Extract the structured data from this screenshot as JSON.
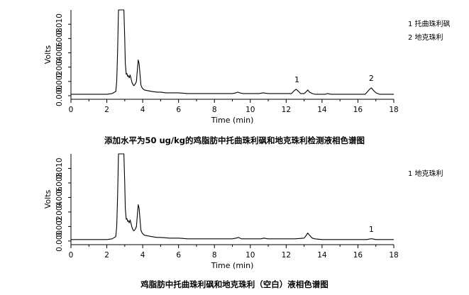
{
  "chart_data": [
    {
      "type": "line",
      "title": "添加水平为50 ug/kg的鸡脂肪中托曲珠利砜和地克珠利检测液相色谱图",
      "xlabel": "Time (min)",
      "ylabel": "Volts",
      "xlim": [
        0,
        18
      ],
      "ylim": [
        -0.0005,
        0.012
      ],
      "x_ticks": [
        "0",
        "2",
        "4",
        "6",
        "8",
        "10",
        "12",
        "14",
        "16",
        "18"
      ],
      "y_ticks_text": [
        "0.000",
        "0.002",
        "0.004",
        "0.006",
        "0.008",
        "0.010"
      ],
      "grid": false,
      "legend_position": "top-right",
      "legend": [
        "1  托曲珠利砜",
        "2  地克珠利"
      ],
      "peak_labels": [
        {
          "label": "1",
          "x": 12.6
        },
        {
          "label": "2",
          "x": 16.75
        }
      ],
      "series": [
        {
          "x": [
            0,
            0.3,
            0.5,
            0.8,
            1.2,
            1.6,
            2.0,
            2.3,
            2.5,
            2.55,
            2.6,
            2.65,
            2.7,
            2.75,
            2.82,
            2.9,
            2.95,
            3.0,
            3.03,
            3.08,
            3.12,
            3.16,
            3.2,
            3.25,
            3.3,
            3.35,
            3.4,
            3.45,
            3.5,
            3.55,
            3.6,
            3.65,
            3.7,
            3.75,
            3.8,
            3.85,
            3.9,
            3.95,
            4.0,
            4.1,
            4.3,
            4.5,
            4.8,
            5.0,
            5.3,
            5.6,
            6.0,
            6.5,
            7.0,
            7.5,
            8.0,
            8.5,
            9.0,
            9.2,
            9.3,
            9.4,
            9.6,
            10.0,
            10.5,
            10.7,
            11.0,
            11.5,
            12.0,
            12.3,
            12.45,
            12.55,
            12.65,
            12.8,
            13.0,
            13.1,
            13.2,
            13.3,
            13.45,
            13.6,
            13.8,
            14.0,
            14.2,
            14.3,
            14.5,
            15.0,
            15.5,
            16.0,
            16.4,
            16.55,
            16.65,
            16.75,
            16.85,
            17.0,
            17.2,
            17.5,
            18.0
          ],
          "y": [
            0.0002,
            0.0002,
            0.0002,
            0.0002,
            0.0002,
            0.0002,
            0.0002,
            0.0003,
            0.0006,
            0.002,
            0.006,
            0.012,
            0.012,
            0.0121,
            0.0121,
            0.0121,
            0.012,
            0.008,
            0.0045,
            0.003,
            0.0031,
            0.0027,
            0.0028,
            0.0025,
            0.0029,
            0.0024,
            0.0019,
            0.0016,
            0.0014,
            0.0015,
            0.0017,
            0.002,
            0.0035,
            0.005,
            0.0045,
            0.003,
            0.0015,
            0.0012,
            0.001,
            0.0008,
            0.0007,
            0.0006,
            0.0005,
            0.0005,
            0.0004,
            0.0004,
            0.0004,
            0.0003,
            0.0003,
            0.0003,
            0.0003,
            0.0003,
            0.0003,
            0.0004,
            0.0005,
            0.0004,
            0.0003,
            0.0003,
            0.0003,
            0.0004,
            0.0003,
            0.0003,
            0.0003,
            0.0003,
            0.0007,
            0.0009,
            0.0007,
            0.0003,
            0.0003,
            0.0005,
            0.0008,
            0.0005,
            0.0003,
            0.0002,
            0.0002,
            0.0002,
            0.0002,
            0.0003,
            0.0002,
            0.0002,
            0.0002,
            0.0002,
            0.0002,
            0.0006,
            0.0009,
            0.0011,
            0.0008,
            0.0004,
            0.0002,
            0.0002,
            0.0002
          ]
        }
      ]
    },
    {
      "type": "line",
      "title": "鸡脂肪中托曲珠利砜和地克珠利（空白）液相色谱图",
      "xlabel": "Time (min)",
      "ylabel": "Volts",
      "xlim": [
        0,
        18
      ],
      "ylim": [
        -0.0005,
        0.012
      ],
      "x_ticks": [
        "0",
        "2",
        "4",
        "6",
        "8",
        "10",
        "12",
        "14",
        "16",
        "18"
      ],
      "y_ticks_text": [
        "0.000",
        "0.002",
        "0.004",
        "0.006",
        "0.008",
        "0.010"
      ],
      "grid": false,
      "legend_position": "top-right",
      "legend": [
        "1 地克珠利"
      ],
      "peak_labels": [
        {
          "label": "1",
          "x": 16.75
        }
      ],
      "series": [
        {
          "x": [
            0,
            0.5,
            1.0,
            1.5,
            2.0,
            2.3,
            2.5,
            2.55,
            2.6,
            2.65,
            2.7,
            2.75,
            2.82,
            2.9,
            2.95,
            3.0,
            3.03,
            3.08,
            3.12,
            3.16,
            3.2,
            3.25,
            3.3,
            3.35,
            3.4,
            3.45,
            3.5,
            3.55,
            3.6,
            3.65,
            3.7,
            3.75,
            3.8,
            3.85,
            3.9,
            3.95,
            4.0,
            4.1,
            4.3,
            4.5,
            4.8,
            5.0,
            5.5,
            6.0,
            6.5,
            7.0,
            8.0,
            9.0,
            9.2,
            9.35,
            9.5,
            10.0,
            10.6,
            10.75,
            11.0,
            12.0,
            12.5,
            13.0,
            13.1,
            13.2,
            13.3,
            13.45,
            13.6,
            14.0,
            14.5,
            15.0,
            16.0,
            16.5,
            16.7,
            16.8,
            17.0,
            18.0
          ],
          "y": [
            0.0002,
            0.0002,
            0.0002,
            0.0002,
            0.0002,
            0.0003,
            0.0006,
            0.002,
            0.006,
            0.012,
            0.012,
            0.0121,
            0.0121,
            0.0121,
            0.012,
            0.008,
            0.0045,
            0.003,
            0.0031,
            0.0027,
            0.0028,
            0.0025,
            0.0029,
            0.0024,
            0.0019,
            0.0016,
            0.0014,
            0.0015,
            0.0017,
            0.002,
            0.0035,
            0.005,
            0.0045,
            0.003,
            0.0015,
            0.0012,
            0.001,
            0.0008,
            0.0007,
            0.0006,
            0.0005,
            0.0005,
            0.0004,
            0.0004,
            0.0003,
            0.0003,
            0.0003,
            0.0003,
            0.0004,
            0.0005,
            0.0003,
            0.0003,
            0.0003,
            0.0004,
            0.0003,
            0.0003,
            0.0003,
            0.0004,
            0.0007,
            0.0011,
            0.0008,
            0.0004,
            0.0003,
            0.0002,
            0.0002,
            0.0002,
            0.0002,
            0.0002,
            0.0003,
            0.0003,
            0.0002,
            0.0002
          ]
        }
      ]
    }
  ]
}
